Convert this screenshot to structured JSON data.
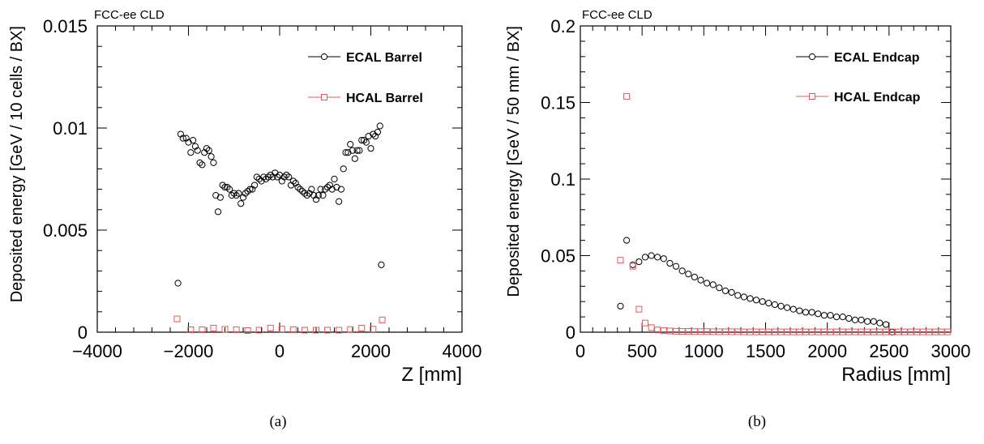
{
  "captions": [
    "(a)",
    "(b)"
  ],
  "colors": {
    "ecal": "#000000",
    "hcal": "#e8585a"
  },
  "chart_data": [
    {
      "type": "scatter",
      "header": "FCC-ee CLD",
      "xlabel": "Z [mm]",
      "ylabel": "Deposited energy [GeV / 10 cells / BX]",
      "xlim": [
        -4000,
        4000
      ],
      "ylim": [
        0,
        0.015
      ],
      "xticks": [
        -4000,
        -2000,
        0,
        2000,
        4000
      ],
      "xtick_labels": [
        "−4000",
        "−2000",
        "0",
        "2000",
        "4000"
      ],
      "yticks": [
        0,
        0.005,
        0.01,
        0.015
      ],
      "ytick_labels": [
        "0",
        "0.005",
        "0.01",
        "0.015"
      ],
      "legend_position": "top-right",
      "series": [
        {
          "name": "ECAL Barrel",
          "marker": "circle",
          "color": "#000000",
          "x": [
            -2230,
            -2170,
            -2120,
            -2050,
            -2000,
            -1950,
            -1900,
            -1850,
            -1800,
            -1750,
            -1700,
            -1650,
            -1600,
            -1550,
            -1500,
            -1450,
            -1400,
            -1350,
            -1300,
            -1250,
            -1200,
            -1150,
            -1100,
            -1050,
            -1000,
            -950,
            -900,
            -850,
            -800,
            -750,
            -700,
            -650,
            -600,
            -550,
            -500,
            -450,
            -400,
            -350,
            -300,
            -250,
            -200,
            -150,
            -100,
            -50,
            0,
            50,
            100,
            150,
            200,
            250,
            300,
            350,
            400,
            450,
            500,
            550,
            600,
            650,
            700,
            750,
            800,
            850,
            900,
            950,
            1000,
            1050,
            1100,
            1150,
            1200,
            1250,
            1300,
            1350,
            1400,
            1450,
            1500,
            1550,
            1600,
            1650,
            1700,
            1750,
            1800,
            1850,
            1900,
            1950,
            2000,
            2050,
            2100,
            2150,
            2200,
            2230
          ],
          "y": [
            0.0024,
            0.0097,
            0.0095,
            0.0095,
            0.0093,
            0.0088,
            0.0094,
            0.0091,
            0.0089,
            0.0083,
            0.0082,
            0.0088,
            0.009,
            0.0089,
            0.0086,
            0.0083,
            0.0067,
            0.0059,
            0.0066,
            0.0072,
            0.0071,
            0.0071,
            0.007,
            0.0067,
            0.0068,
            0.0067,
            0.0068,
            0.0063,
            0.0066,
            0.0068,
            0.0069,
            0.007,
            0.007,
            0.0072,
            0.0076,
            0.0075,
            0.0074,
            0.0076,
            0.0075,
            0.0076,
            0.0077,
            0.0076,
            0.0078,
            0.0076,
            0.0077,
            0.0074,
            0.0076,
            0.0077,
            0.0076,
            0.0072,
            0.0074,
            0.0073,
            0.0071,
            0.007,
            0.0069,
            0.0068,
            0.0067,
            0.0068,
            0.007,
            0.0067,
            0.0065,
            0.0067,
            0.007,
            0.0067,
            0.007,
            0.0071,
            0.0072,
            0.007,
            0.0075,
            0.0071,
            0.0064,
            0.007,
            0.008,
            0.0088,
            0.0088,
            0.0092,
            0.0089,
            0.0085,
            0.0089,
            0.0089,
            0.0094,
            0.0094,
            0.0093,
            0.0096,
            0.009,
            0.0097,
            0.0096,
            0.0098,
            0.0101,
            0.0033
          ]
        },
        {
          "name": "HCAL Barrel",
          "marker": "square",
          "color": "#e8585a",
          "x": [
            -2250,
            -1950,
            -1700,
            -1450,
            -1200,
            -950,
            -700,
            -450,
            -200,
            50,
            300,
            550,
            800,
            1050,
            1300,
            1550,
            1800,
            2050,
            2250
          ],
          "y": [
            0.00065,
            0.00012,
            0.00012,
            0.0002,
            0.00014,
            0.00012,
            8e-05,
            0.0001,
            0.0002,
            0.00015,
            0.00012,
            0.0001,
            0.0001,
            0.0001,
            0.0001,
            0.00013,
            0.0002,
            0.00015,
            0.0006
          ]
        }
      ]
    },
    {
      "type": "scatter",
      "header": "FCC-ee CLD",
      "xlabel": "Radius [mm]",
      "ylabel": "Deposited energy [GeV / 50 mm / BX]",
      "xlim": [
        0,
        3000
      ],
      "ylim": [
        0,
        0.2
      ],
      "xticks": [
        0,
        500,
        1000,
        1500,
        2000,
        2500,
        3000
      ],
      "xtick_labels": [
        "0",
        "500",
        "1000",
        "1500",
        "2000",
        "2500",
        "3000"
      ],
      "yticks": [
        0,
        0.05,
        0.1,
        0.15,
        0.2
      ],
      "ytick_labels": [
        "0",
        "0.05",
        "0.1",
        "0.15",
        "0.2"
      ],
      "legend_position": "top-right",
      "series": [
        {
          "name": "ECAL Endcap",
          "marker": "circle",
          "color": "#000000",
          "x": [
            325,
            375,
            425,
            475,
            525,
            575,
            625,
            675,
            725,
            775,
            825,
            875,
            925,
            975,
            1025,
            1075,
            1125,
            1175,
            1225,
            1275,
            1325,
            1375,
            1425,
            1475,
            1525,
            1575,
            1625,
            1675,
            1725,
            1775,
            1825,
            1875,
            1925,
            1975,
            2025,
            2075,
            2125,
            2175,
            2225,
            2275,
            2325,
            2375,
            2425,
            2475,
            2525
          ],
          "y": [
            0.017,
            0.06,
            0.044,
            0.046,
            0.049,
            0.05,
            0.049,
            0.048,
            0.045,
            0.043,
            0.04,
            0.038,
            0.036,
            0.034,
            0.032,
            0.031,
            0.029,
            0.027,
            0.026,
            0.024,
            0.023,
            0.022,
            0.021,
            0.02,
            0.019,
            0.018,
            0.017,
            0.016,
            0.015,
            0.014,
            0.013,
            0.013,
            0.012,
            0.011,
            0.011,
            0.01,
            0.01,
            0.009,
            0.008,
            0.008,
            0.007,
            0.007,
            0.006,
            0.005,
            0.0
          ]
        },
        {
          "name": "HCAL Endcap",
          "marker": "square",
          "color": "#e8585a",
          "x": [
            325,
            375,
            425,
            475,
            525,
            575,
            625,
            675,
            725,
            775,
            825,
            875,
            925,
            975,
            1025,
            1075,
            1125,
            1175,
            1225,
            1275,
            1325,
            1375,
            1425,
            1475,
            1525,
            1575,
            1625,
            1675,
            1725,
            1775,
            1825,
            1875,
            1925,
            1975,
            2025,
            2075,
            2125,
            2175,
            2225,
            2275,
            2325,
            2375,
            2425,
            2475,
            2525,
            2575,
            2625,
            2675,
            2725,
            2775,
            2825,
            2875,
            2925,
            2975
          ],
          "y": [
            0.047,
            0.154,
            0.043,
            0.015,
            0.006,
            0.003,
            0.0015,
            0.001,
            0.0008,
            0.0006,
            0.0005,
            0.0005,
            0.0004,
            0.0004,
            0.0004,
            0.0003,
            0.0003,
            0.0003,
            0.0003,
            0.0003,
            0.0002,
            0.0002,
            0.0002,
            0.0002,
            0.0002,
            0.0002,
            0.0002,
            0.0002,
            0.0002,
            0.0002,
            0.0002,
            0.0002,
            0.0002,
            0.0002,
            0.0002,
            0.0002,
            0.0002,
            0.0002,
            0.0002,
            0.0002,
            0.0002,
            0.0002,
            0.0002,
            0.0002,
            0.0002,
            0.0002,
            0.0002,
            0.0002,
            0.0002,
            0.0002,
            0.0002,
            0.0002,
            0.0002,
            0.0002
          ]
        }
      ]
    }
  ]
}
